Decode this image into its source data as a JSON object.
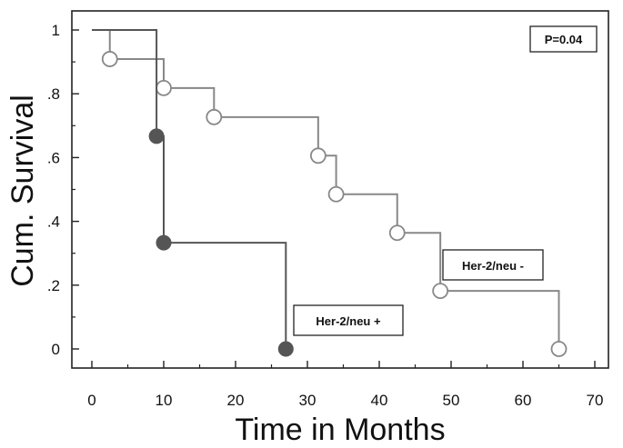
{
  "chart_data": {
    "type": "line",
    "title": "",
    "xlabel": "Time in Months",
    "ylabel": "Cum. Survival",
    "xlim": [
      0,
      70
    ],
    "ylim": [
      0,
      1
    ],
    "x_ticks": [
      0,
      10,
      20,
      30,
      40,
      50,
      60,
      70
    ],
    "x_tick_labels": [
      "0",
      "10",
      "20",
      "30",
      "40",
      "50",
      "60",
      "70"
    ],
    "y_ticks": [
      0,
      0.2,
      0.4,
      0.6,
      0.8,
      1
    ],
    "y_tick_labels": [
      "0",
      ".2",
      ".4",
      ".6",
      ".8",
      "1"
    ],
    "grid": false,
    "annotations": {
      "p_value": "P=0.04"
    },
    "series": [
      {
        "name": "Her-2/neu -",
        "color": "#888888",
        "marker": "open-circle",
        "steps": [
          {
            "x": 0,
            "y": 1.0
          },
          {
            "x": 2.5,
            "y": 0.909
          },
          {
            "x": 10,
            "y": 0.818
          },
          {
            "x": 17,
            "y": 0.727
          },
          {
            "x": 31.5,
            "y": 0.606
          },
          {
            "x": 34,
            "y": 0.485
          },
          {
            "x": 42.5,
            "y": 0.364
          },
          {
            "x": 48.5,
            "y": 0.182
          },
          {
            "x": 65,
            "y": 0.0
          }
        ]
      },
      {
        "name": "Her-2/neu +",
        "color": "#555555",
        "marker": "filled-circle",
        "steps": [
          {
            "x": 0,
            "y": 1.0
          },
          {
            "x": 9,
            "y": 0.667
          },
          {
            "x": 10,
            "y": 0.333
          },
          {
            "x": 27,
            "y": 0.0
          }
        ]
      }
    ]
  }
}
